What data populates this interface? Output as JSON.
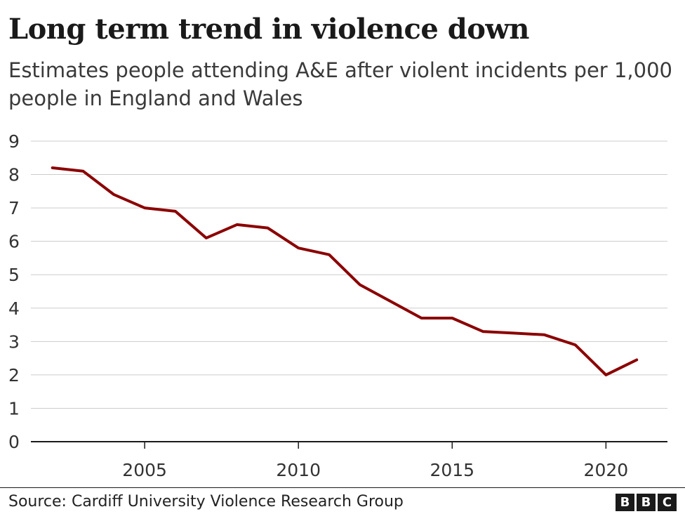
{
  "chart_data": {
    "type": "line",
    "title": "Long term trend in violence down",
    "subtitle": "Estimates people attending A&E after violent incidents per 1,000 people in England and Wales",
    "x": [
      2002,
      2003,
      2004,
      2005,
      2006,
      2007,
      2008,
      2009,
      2010,
      2011,
      2012,
      2013,
      2014,
      2015,
      2016,
      2017,
      2018,
      2019,
      2020,
      2021
    ],
    "series": [
      {
        "values": [
          8.2,
          8.1,
          7.4,
          7.0,
          6.9,
          6.1,
          6.5,
          6.4,
          5.8,
          5.6,
          4.7,
          4.2,
          3.7,
          3.7,
          3.3,
          3.25,
          3.2,
          2.9,
          2.0,
          2.45
        ],
        "color": "#8b0000"
      }
    ],
    "xticks": [
      2005,
      2010,
      2015,
      2020
    ],
    "yticks": [
      0,
      1,
      2,
      3,
      4,
      5,
      6,
      7,
      8,
      9
    ],
    "ylim": [
      0,
      9
    ],
    "xlim": [
      2001.3,
      2022
    ],
    "grid": true,
    "xlabel": "",
    "ylabel": ""
  },
  "footer": {
    "source": "Source: Cardiff University Violence Research Group",
    "logo_letters": [
      "B",
      "B",
      "C"
    ]
  }
}
